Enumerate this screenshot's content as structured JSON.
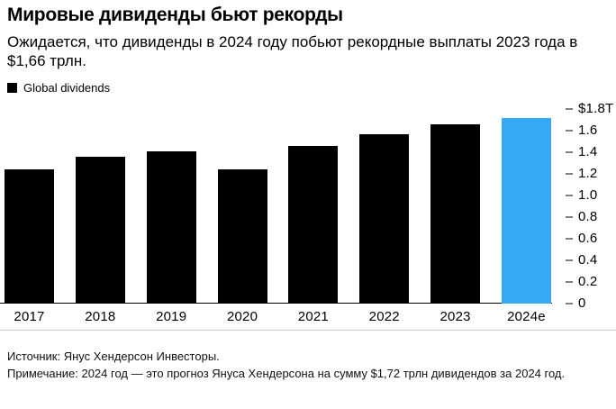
{
  "header": {
    "title": "Мировые дивиденды бьют рекорды",
    "subtitle": "Ожидается, что дивиденды в 2024 году побьют рекордные выплаты 2023 года в $1,66 трлн."
  },
  "legend": {
    "label": "Global dividends",
    "swatch_color": "#000000"
  },
  "chart_data": {
    "type": "bar",
    "title": "Global dividends",
    "unit": "USD trillions",
    "categories": [
      "2017",
      "2018",
      "2019",
      "2020",
      "2021",
      "2022",
      "2023",
      "2024e"
    ],
    "values": [
      1.24,
      1.36,
      1.41,
      1.24,
      1.46,
      1.57,
      1.66,
      1.72
    ],
    "ylim": [
      0,
      1.8
    ],
    "y_ticks": [
      {
        "value": 1.8,
        "label": "$1.8T"
      },
      {
        "value": 1.6,
        "label": "1.6"
      },
      {
        "value": 1.4,
        "label": "1.4"
      },
      {
        "value": 1.2,
        "label": "1.2"
      },
      {
        "value": 1.0,
        "label": "1.0"
      },
      {
        "value": 0.8,
        "label": "0.8"
      },
      {
        "value": 0.6,
        "label": "0.6"
      },
      {
        "value": 0.4,
        "label": "0.4"
      },
      {
        "value": 0.2,
        "label": "0.2"
      },
      {
        "value": 0.0,
        "label": "0"
      }
    ],
    "axis_side": "right",
    "grid": false,
    "legend_position": "top-left",
    "bar_color": "#000000",
    "highlight_index": 7,
    "highlight_color": "#37a8f5",
    "tick_dash_color": "#808080"
  },
  "footer": {
    "source": "Источник: Янус Хендерсон Инвесторы.",
    "note": "Примечание: 2024 год — это прогноз Януса Хендерсона на сумму $1,72 трлн дивидендов за 2024 год."
  }
}
